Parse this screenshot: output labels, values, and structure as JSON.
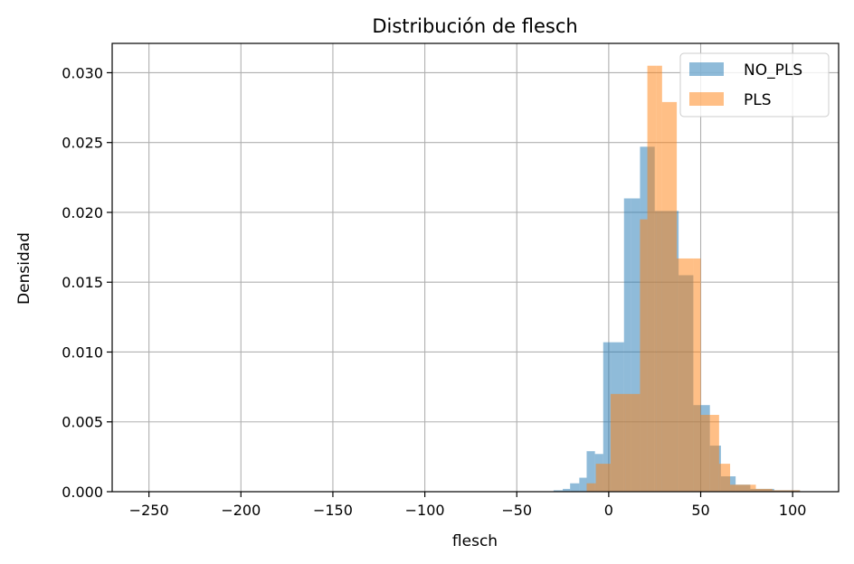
{
  "chart_data": {
    "type": "histogram",
    "title": "Distribución de flesch",
    "xlabel": "flesch",
    "ylabel": "Densidad",
    "xlim": [
      -270,
      125
    ],
    "ylim": [
      0,
      0.0321
    ],
    "xticks": [
      -250,
      -200,
      -150,
      -100,
      -50,
      0,
      50,
      100
    ],
    "xtick_labels": [
      "−250",
      "−200",
      "−150",
      "−100",
      "−50",
      "0",
      "50",
      "100"
    ],
    "yticks": [
      0.0,
      0.005,
      0.01,
      0.015,
      0.02,
      0.025,
      0.03
    ],
    "ytick_labels": [
      "0.000",
      "0.005",
      "0.010",
      "0.015",
      "0.020",
      "0.025",
      "0.030"
    ],
    "grid": true,
    "legend": "top-right",
    "series": [
      {
        "name": "NO_PLS",
        "color": "#1f77b4",
        "opacity": 0.5,
        "bins": [
          [
            -30,
            -25,
            0.0001
          ],
          [
            -25,
            -21,
            0.0002
          ],
          [
            -21,
            -16,
            0.0006
          ],
          [
            -16,
            -12,
            0.001
          ],
          [
            -12,
            -7.5,
            0.0029
          ],
          [
            -7.5,
            -3,
            0.0027
          ],
          [
            -3,
            1.5,
            0.0107
          ],
          [
            1.5,
            8.3,
            0.0107
          ],
          [
            8.3,
            12.2,
            0.021
          ],
          [
            12.2,
            17,
            0.021
          ],
          [
            17,
            25,
            0.0247
          ],
          [
            25,
            34,
            0.0201
          ],
          [
            34,
            38,
            0.0201
          ],
          [
            38,
            46,
            0.0155
          ],
          [
            46,
            55,
            0.0062
          ],
          [
            55,
            61,
            0.0033
          ],
          [
            61,
            69,
            0.0011
          ],
          [
            69,
            77,
            0.0005
          ],
          [
            77,
            90,
            0.0002
          ],
          [
            90,
            104,
            0.0001
          ]
        ]
      },
      {
        "name": "PLS",
        "color": "#ff7f0e",
        "opacity": 0.5,
        "bins": [
          [
            -12,
            -7,
            0.0006
          ],
          [
            -7,
            1,
            0.002
          ],
          [
            1,
            9,
            0.007
          ],
          [
            9,
            17,
            0.007
          ],
          [
            17,
            21,
            0.0195
          ],
          [
            21,
            26,
            0.0305
          ],
          [
            26,
            29,
            0.0305
          ],
          [
            29,
            37,
            0.0279
          ],
          [
            37,
            46,
            0.0167
          ],
          [
            46,
            50,
            0.0167
          ],
          [
            50,
            55,
            0.0055
          ],
          [
            55,
            60,
            0.0055
          ],
          [
            60,
            66,
            0.002
          ],
          [
            66,
            74,
            0.0005
          ],
          [
            74,
            80,
            0.0005
          ],
          [
            80,
            89,
            0.0002
          ],
          [
            89,
            104,
            0.0001
          ]
        ]
      }
    ]
  }
}
